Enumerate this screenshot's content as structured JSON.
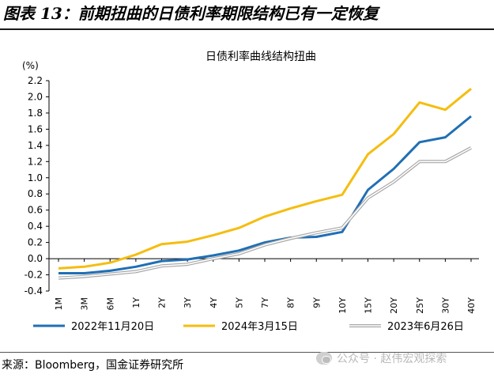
{
  "figure": {
    "title": "图表 13：前期扭曲的日债利率期限结构已有一定恢复",
    "source": "来源：Bloomberg，国金证券研究所",
    "watermark": "公众号 · 赵伟宏观探索",
    "watermark_icon": "wechat-icon"
  },
  "chart_data": {
    "type": "line",
    "title": "日债利率曲线结构扭曲",
    "ylabel": "(%)",
    "xlabel": "",
    "categories": [
      "1M",
      "3M",
      "6M",
      "1Y",
      "2Y",
      "3Y",
      "4Y",
      "5Y",
      "7Y",
      "8Y",
      "9Y",
      "10Y",
      "15Y",
      "20Y",
      "25Y",
      "30Y",
      "40Y"
    ],
    "ylim": [
      -0.4,
      2.2
    ],
    "yticks": [
      "-0.4",
      "-0.2",
      "0.0",
      "0.2",
      "0.4",
      "0.6",
      "0.8",
      "1.0",
      "1.2",
      "1.4",
      "1.6",
      "1.8",
      "2.0",
      "2.2"
    ],
    "grid": false,
    "legend_position": "bottom",
    "series": [
      {
        "name": "2022年11月20日",
        "color": "#1f6fb5",
        "style": "solid",
        "values": [
          -0.18,
          -0.18,
          -0.15,
          -0.1,
          -0.03,
          -0.01,
          0.04,
          0.1,
          0.2,
          0.26,
          0.27,
          0.33,
          0.85,
          1.11,
          1.44,
          1.5,
          1.76
        ]
      },
      {
        "name": "2024年3月15日",
        "color": "#f5bd0f",
        "style": "solid",
        "values": [
          -0.12,
          -0.1,
          -0.05,
          0.05,
          0.18,
          0.21,
          0.29,
          0.38,
          0.52,
          0.62,
          0.71,
          0.79,
          1.29,
          1.54,
          1.93,
          1.84,
          2.1
        ]
      },
      {
        "name": "2023年6月26日",
        "color": "#a8a8a8",
        "style": "double",
        "values": [
          -0.24,
          -0.22,
          -0.19,
          -0.16,
          -0.09,
          -0.07,
          0.0,
          0.06,
          0.17,
          0.25,
          0.32,
          0.38,
          0.75,
          0.95,
          1.2,
          1.2,
          1.37
        ]
      }
    ]
  }
}
